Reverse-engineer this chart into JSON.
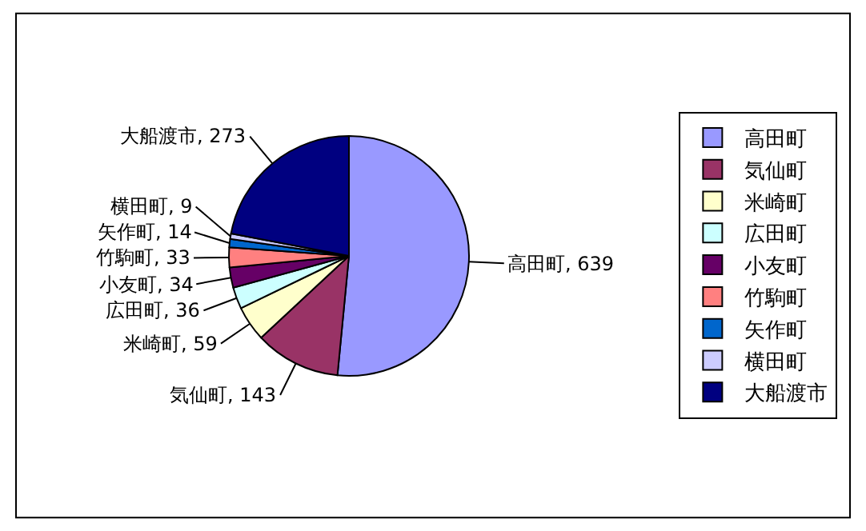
{
  "chart_data": {
    "type": "pie",
    "categories": [
      "高田町",
      "気仙町",
      "米崎町",
      "広田町",
      "小友町",
      "竹駒町",
      "矢作町",
      "横田町",
      "大船渡市"
    ],
    "values": [
      639,
      143,
      59,
      36,
      34,
      33,
      14,
      9,
      273
    ],
    "value_labels": [
      "高田町, 639",
      "気仙町, 143",
      "米崎町, 59",
      "広田町, 36",
      "小友町, 34",
      "竹駒町, 33",
      "矢作町, 14",
      "横田町, 9",
      "大船渡市, 273"
    ],
    "colors": [
      "#9999ff",
      "#993366",
      "#ffffcc",
      "#ccffff",
      "#660066",
      "#ff8080",
      "#0066cc",
      "#ccccff",
      "#000080"
    ],
    "legend": "right"
  }
}
